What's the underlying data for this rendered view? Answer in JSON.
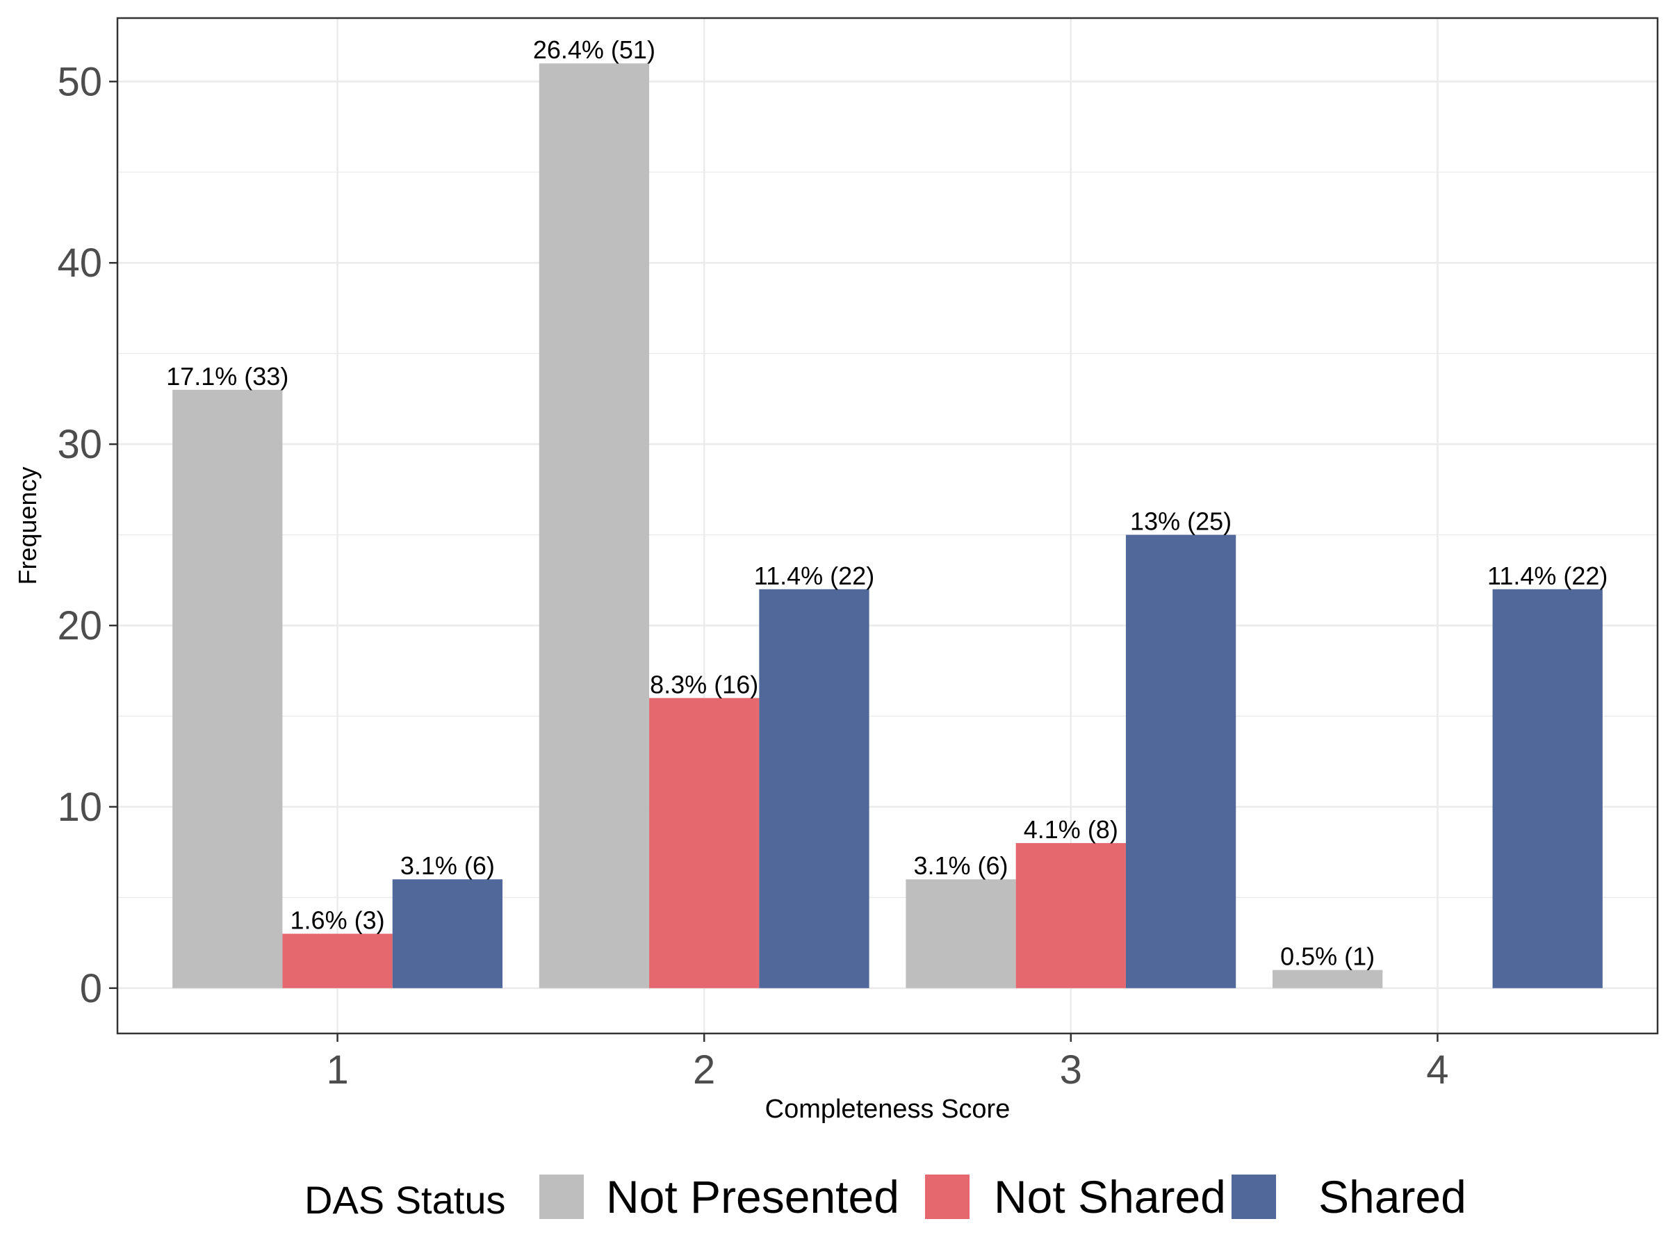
{
  "chart_data": {
    "type": "bar",
    "xlabel": "Completeness Score",
    "ylabel": "Frequency",
    "ylim": [
      -2.5,
      53.5
    ],
    "yticks": [
      0,
      10,
      20,
      30,
      40,
      50
    ],
    "categories": [
      "1",
      "2",
      "3",
      "4"
    ],
    "grid": true,
    "legend": {
      "title": "DAS Status",
      "position": "bottom"
    },
    "series": [
      {
        "name": "Not Presented",
        "color": "#bebebe",
        "values": [
          33,
          51,
          6,
          1
        ],
        "labels": [
          "17.1% (33)",
          "26.4% (51)",
          "3.1% (6)",
          "0.5% (1)"
        ]
      },
      {
        "name": "Not Shared",
        "color": "#e5686e",
        "values": [
          3,
          16,
          8,
          null
        ],
        "labels": [
          "1.6% (3)",
          "8.3% (16)",
          "4.1% (8)",
          null
        ]
      },
      {
        "name": "Shared",
        "color": "#51689b",
        "values": [
          6,
          22,
          25,
          22
        ],
        "labels": [
          "3.1% (6)",
          "11.4% (22)",
          "13% (25)",
          "11.4% (22)"
        ]
      }
    ]
  }
}
